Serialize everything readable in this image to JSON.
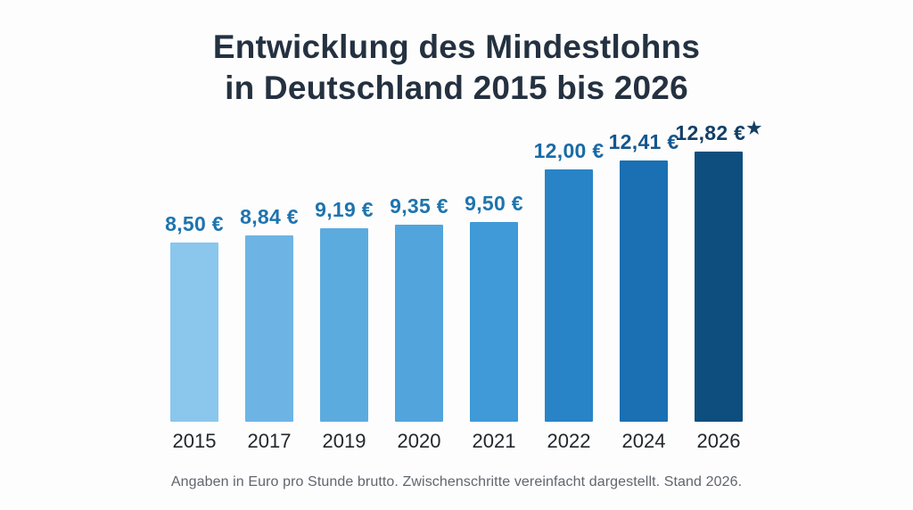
{
  "page": {
    "background_color": "#fdfdfd"
  },
  "title": {
    "line1": "Entwicklung des Mindestlohns",
    "line2": "in Deutschland 2015 bis 2026",
    "color": "#243140"
  },
  "footer": {
    "text": "Angaben in Euro pro Stunde brutto. Zwischenschritte vereinfacht dargestellt. Stand 2026.",
    "color": "#60666e"
  },
  "chart_data": {
    "type": "bar",
    "title": "Entwicklung des Mindestlohns in Deutschland 2015 bis 2026",
    "xlabel": "",
    "ylabel": "",
    "unit": "Euro pro Stunde brutto",
    "categories": [
      "2015",
      "2017",
      "2019",
      "2020",
      "2021",
      "2022",
      "2024",
      "2026"
    ],
    "values": [
      8.5,
      8.84,
      9.19,
      9.35,
      9.5,
      12.0,
      12.41,
      12.82
    ],
    "value_labels": [
      "8,50 €",
      "8,84 €",
      "9,19 €",
      "9,35 €",
      "9,50 €",
      "12,00 €",
      "12,41 €",
      "12,82 €"
    ],
    "starred": [
      false,
      false,
      false,
      false,
      false,
      false,
      false,
      true
    ],
    "star_glyph": "★",
    "bar_colors": [
      "#8bc6ec",
      "#6db4e5",
      "#5cabdf",
      "#51a5dc",
      "#3f9ad7",
      "#2884c6",
      "#1a70b3",
      "#0d4e7f"
    ],
    "label_colors": [
      "#1e74ae",
      "#1e74ae",
      "#1e74ae",
      "#1e74ae",
      "#1e74ae",
      "#1a6aa6",
      "#14578e",
      "#123f66"
    ],
    "year_label_color": "#23272c",
    "ylim": [
      0,
      13
    ],
    "grid": false,
    "legend": "none",
    "orientation": "vertical"
  }
}
